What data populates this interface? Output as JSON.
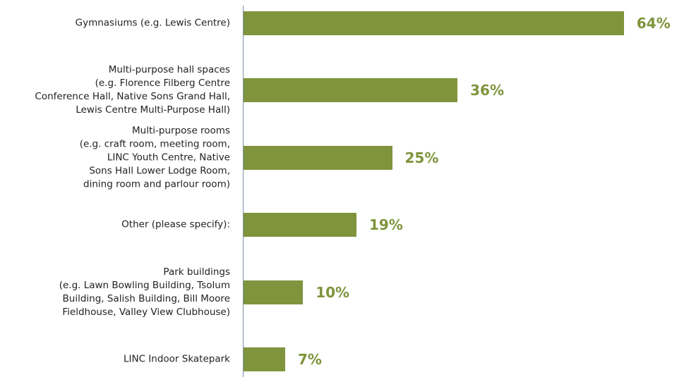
{
  "chart_data": {
    "type": "bar",
    "orientation": "horizontal",
    "categories": [
      "Gymnasiums (e.g. Lewis Centre)",
      "Multi-purpose hall spaces\n(e.g. Florence Filberg Centre\nConference Hall, Native Sons Grand Hall,\nLewis Centre Multi-Purpose Hall)",
      "Multi-purpose rooms\n(e.g. craft room, meeting room,\nLINC Youth Centre, Native\nSons Hall Lower Lodge Room,\ndining room and parlour room)",
      "Other (please specify):",
      "Park buildings\n(e.g. Lawn Bowling Building, Tsolum\nBuilding, Salish Building, Bill Moore\nFieldhouse, Valley View Clubhouse)",
      "LINC Indoor Skatepark"
    ],
    "values": [
      64,
      36,
      25,
      19,
      10,
      7
    ],
    "value_labels": [
      "64%",
      "36%",
      "25%",
      "19%",
      "10%",
      "7%"
    ],
    "color": "#7f943c"
  }
}
